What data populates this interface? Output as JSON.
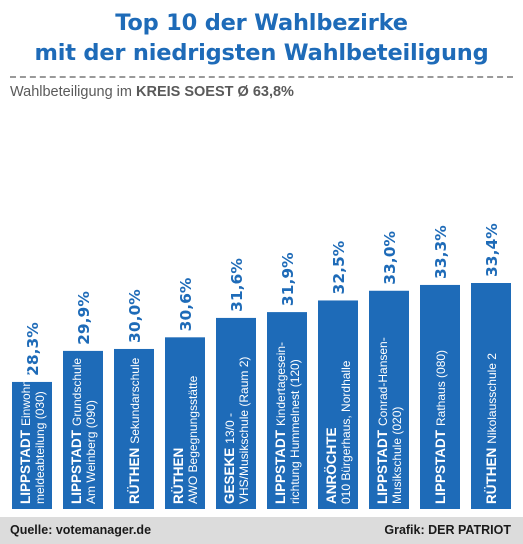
{
  "header": {
    "title_line1": "Top 10 der Wahlbezirke",
    "title_line2": "mit der niedrigsten Wahlbeteiligung",
    "subtitle_prefix": "Wahlbeteiligung im",
    "subtitle_region": "KREIS SOEST Ø 63,8%"
  },
  "footer": {
    "source": "Quelle: votemanager.de",
    "credit": "Grafik: DER PATRIOT"
  },
  "colors": {
    "bar": "#1e6bb8",
    "value_label": "#1e6bb8",
    "title": "#1e6bb8",
    "bar_text": "#ffffff"
  },
  "chart_data": {
    "type": "bar",
    "categories": [
      "LIPPSTADT Einwohnermeldeabteilung (030)",
      "LIPPSTADT Grundschule Am Weinberg (090)",
      "RÜTHEN Sekundarschule",
      "RÜTHEN AWO Begegnungsstätte",
      "GESEKE 13/0 - VHS/Musikschule (Raum 2)",
      "LIPPSTADT Kindertagesein-richtung Hummelnest (120)",
      "ANRÖCHTE 010 Bürgerhaus, Nordhalle",
      "LIPPSTADT Conrad-Hansen-Musikschule (020)",
      "LIPPSTADT Rathaus (080)",
      "RÜTHEN Nikolausschule 2"
    ],
    "values": [
      28.3,
      29.9,
      30.0,
      30.6,
      31.6,
      31.9,
      32.5,
      33.0,
      33.3,
      33.4
    ],
    "value_labels": [
      "28,3%",
      "29,9%",
      "30,0%",
      "30,6%",
      "31,6%",
      "31,9%",
      "32,5%",
      "33,0%",
      "33,3%",
      "33,4%"
    ],
    "bar_labels": [
      {
        "town": "LIPPSTADT",
        "first": "Einwohner-",
        "rest": [
          "meldeabteilung (030)"
        ]
      },
      {
        "town": "LIPPSTADT",
        "first": "Grundschule",
        "rest": [
          "Am Weinberg (090)"
        ]
      },
      {
        "town": "RÜTHEN",
        "first": "Sekundarschule",
        "rest": []
      },
      {
        "town": "RÜTHEN",
        "first": "",
        "rest": [
          "AWO Begegnungsstätte"
        ]
      },
      {
        "town": "GESEKE",
        "first": "13/0 -",
        "rest": [
          "VHS/Musikschule (Raum 2)"
        ]
      },
      {
        "town": "LIPPSTADT",
        "first": "Kindertagesein-",
        "rest": [
          "richtung Hummelnest (120)"
        ]
      },
      {
        "town": "ANRÖCHTE",
        "first": "",
        "rest": [
          "010 Bürgerhaus, Nordhalle"
        ]
      },
      {
        "town": "LIPPSTADT",
        "first": "Conrad-Hansen-",
        "rest": [
          "Musikschule (020)"
        ]
      },
      {
        "town": "LIPPSTADT",
        "first": "Rathaus (080)",
        "rest": []
      },
      {
        "town": "RÜTHEN",
        "first": "Nikolausschule 2",
        "rest": []
      }
    ],
    "orientation": "vertical bars with rotated labels",
    "grid": false,
    "legend": "none"
  }
}
